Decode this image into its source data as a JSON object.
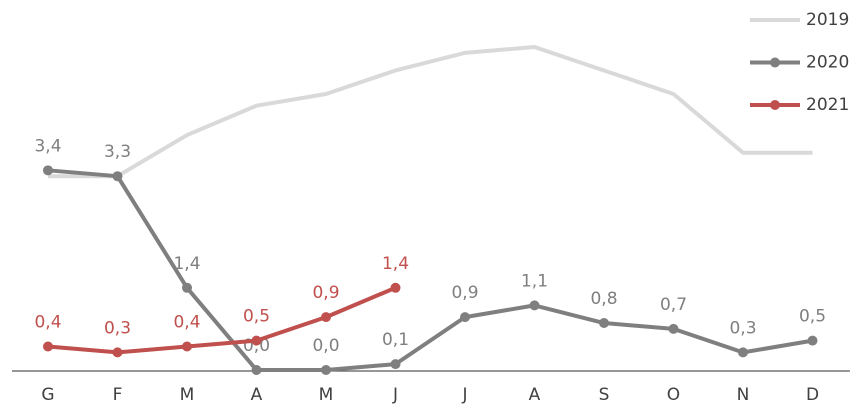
{
  "chart_data": {
    "type": "line",
    "categories": [
      "G",
      "F",
      "M",
      "A",
      "M",
      "J",
      "J",
      "A",
      "S",
      "O",
      "N",
      "D"
    ],
    "ylim": [
      0,
      6.3
    ],
    "legend": "top-right",
    "series": [
      {
        "name": "2019",
        "color": "#d9d9d9",
        "markers": false,
        "values": [
          3.3,
          3.3,
          4.0,
          4.5,
          4.7,
          5.1,
          5.4,
          5.5,
          5.1,
          4.7,
          3.7,
          3.7
        ]
      },
      {
        "name": "2020",
        "color": "#7f7f7f",
        "markers": true,
        "values": [
          3.4,
          3.3,
          1.4,
          0.0,
          0.0,
          0.1,
          0.9,
          1.1,
          0.8,
          0.7,
          0.3,
          0.5
        ],
        "value_labels": [
          "3,4",
          "3,3",
          "1,4",
          "0,0",
          "0,0",
          "0,1",
          "0,9",
          "1,1",
          "0,8",
          "0,7",
          "0,3",
          "0,5"
        ]
      },
      {
        "name": "2021",
        "color": "#c0504d",
        "markers": true,
        "values": [
          0.4,
          0.3,
          0.4,
          0.5,
          0.9,
          1.4,
          null,
          null,
          null,
          null,
          null,
          null
        ],
        "value_labels": [
          "0,4",
          "0,3",
          "0,4",
          "0,5",
          "0,9",
          "1,4",
          null,
          null,
          null,
          null,
          null,
          null
        ]
      }
    ]
  }
}
